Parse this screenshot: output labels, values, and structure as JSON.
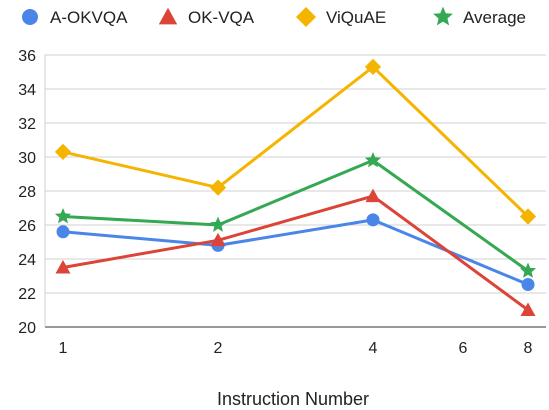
{
  "chart_data": {
    "type": "line",
    "title": "",
    "xlabel": "Instruction Number",
    "ylabel": "",
    "x": [
      1,
      2,
      4,
      8
    ],
    "x_ticks": [
      1,
      2,
      4,
      6,
      8
    ],
    "ylim": [
      20,
      36
    ],
    "y_ticks": [
      20,
      22,
      24,
      26,
      28,
      30,
      32,
      34,
      36
    ],
    "grid": true,
    "legend_position": "top",
    "series": [
      {
        "name": "A-OKVQA",
        "marker": "circle",
        "color": "#4a86e8",
        "values": [
          25.6,
          24.8,
          26.3,
          22.5
        ]
      },
      {
        "name": "OK-VQA",
        "marker": "triangle",
        "color": "#db4437",
        "values": [
          23.5,
          25.1,
          27.7,
          21.0
        ]
      },
      {
        "name": "ViQuAE",
        "marker": "diamond",
        "color": "#f4b400",
        "values": [
          30.3,
          28.2,
          35.3,
          26.5
        ]
      },
      {
        "name": "Average",
        "marker": "star",
        "color": "#34a853",
        "values": [
          26.5,
          26.0,
          29.8,
          23.3
        ]
      }
    ]
  }
}
